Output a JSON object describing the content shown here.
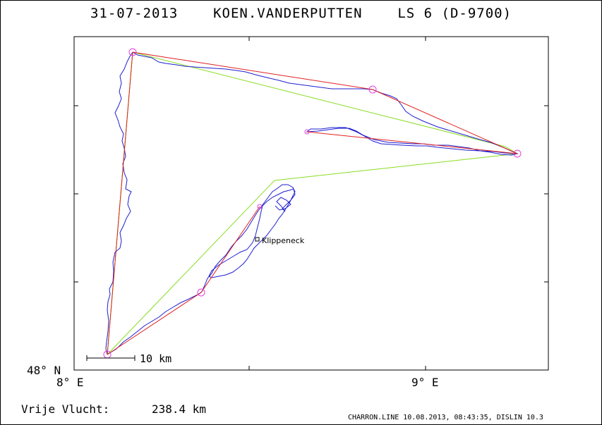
{
  "title": "31-07-2013    KOEN.VANDERPUTTEN    LS 6 (D-9700)",
  "axis": {
    "lat_label": "48° N",
    "lon_labels": [
      "8° E",
      "9° E"
    ]
  },
  "scale_bar": {
    "label": "10 km"
  },
  "place_label": "Klippeneck",
  "free_flight": {
    "label": "Vrije Vlucht:",
    "value": "238.4 km"
  },
  "footer": "CHARRON.LINE 10.08.2013, 08:43:35, DISLIN 10.3",
  "colors": {
    "track": "#1f1fd0",
    "free_flight_legs": "#e02020",
    "triangle": "#88dd22",
    "turnpoint": "#e040e0"
  }
}
